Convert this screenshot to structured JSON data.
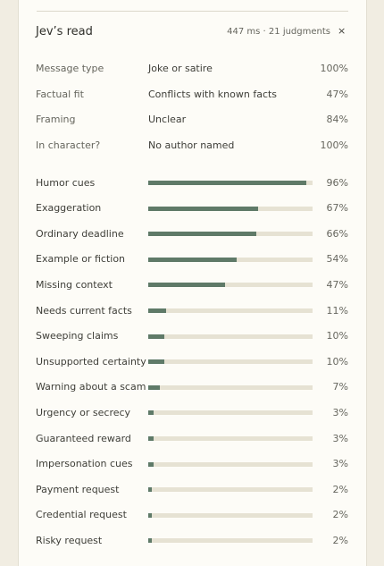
{
  "header": {
    "title": "Jev’s read",
    "meta": "447 ms · 21 judgments",
    "close": "×"
  },
  "summary": [
    {
      "label": "Message type",
      "value": "Joke or satire",
      "score": "100%"
    },
    {
      "label": "Factual fit",
      "value": "Conflicts with known facts",
      "score": "47%"
    },
    {
      "label": "Framing",
      "value": "Unclear",
      "score": "84%"
    },
    {
      "label": "In character?",
      "value": "No author named",
      "score": "100%"
    }
  ],
  "signals": [
    {
      "name": "Humor cues",
      "value": 96,
      "label": "96%"
    },
    {
      "name": "Exaggeration",
      "value": 67,
      "label": "67%"
    },
    {
      "name": "Ordinary deadline",
      "value": 66,
      "label": "66%"
    },
    {
      "name": "Example or fiction",
      "value": 54,
      "label": "54%"
    },
    {
      "name": "Missing context",
      "value": 47,
      "label": "47%"
    },
    {
      "name": "Needs current facts",
      "value": 11,
      "label": "11%"
    },
    {
      "name": "Sweeping claims",
      "value": 10,
      "label": "10%"
    },
    {
      "name": "Unsupported certainty",
      "value": 10,
      "label": "10%"
    },
    {
      "name": "Warning about a scam",
      "value": 7,
      "label": "7%"
    },
    {
      "name": "Urgency or secrecy",
      "value": 3,
      "label": "3%"
    },
    {
      "name": "Guaranteed reward",
      "value": 3,
      "label": "3%"
    },
    {
      "name": "Impersonation cues",
      "value": 3,
      "label": "3%"
    },
    {
      "name": "Payment request",
      "value": 2,
      "label": "2%"
    },
    {
      "name": "Credential request",
      "value": 2,
      "label": "2%"
    },
    {
      "name": "Risky request",
      "value": 2,
      "label": "2%"
    }
  ]
}
